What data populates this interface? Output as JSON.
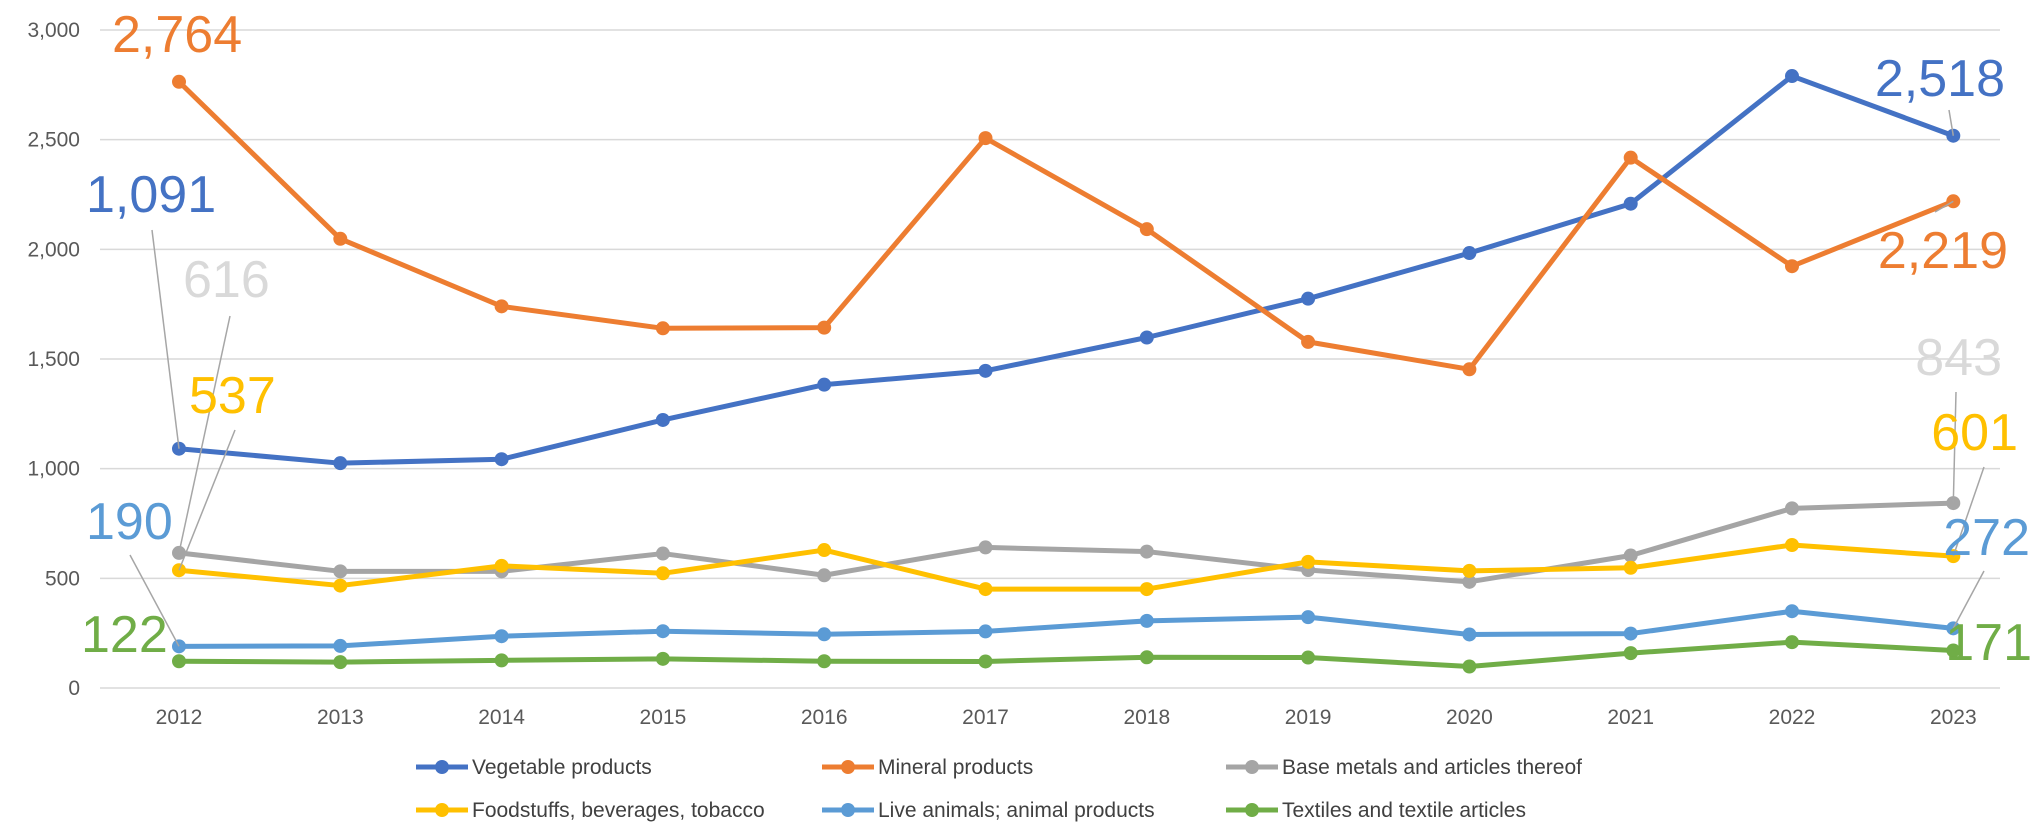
{
  "chart_data": {
    "type": "line",
    "x": [
      "2012",
      "2013",
      "2014",
      "2015",
      "2016",
      "2017",
      "2018",
      "2019",
      "2020",
      "2021",
      "2022",
      "2023"
    ],
    "ylim": [
      0,
      3000
    ],
    "yticks": [
      0,
      500,
      1000,
      1500,
      2000,
      2500,
      3000
    ],
    "ytick_labels": [
      "0",
      "500",
      "1,000",
      "1,500",
      "2,000",
      "2,500",
      "3,000"
    ],
    "grid": "horizontal",
    "legend_position": "bottom",
    "series": [
      {
        "name": "Vegetable products",
        "color": "#4472C4",
        "values": [
          1091,
          1025,
          1043,
          1222,
          1383,
          1446,
          1598,
          1775,
          1983,
          2208,
          2790,
          2518
        ],
        "first_label": "1,091",
        "last_label": "2,518"
      },
      {
        "name": "Mineral products",
        "color": "#ED7D31",
        "values": [
          2764,
          2048,
          1740,
          1640,
          1643,
          2507,
          2092,
          1578,
          1453,
          2418,
          1923,
          2219
        ],
        "first_label": "2,764",
        "last_label": "2,219"
      },
      {
        "name": "Base metals and articles thereof",
        "color": "#A5A5A5",
        "values": [
          616,
          532,
          532,
          613,
          514,
          641,
          622,
          538,
          484,
          604,
          819,
          843
        ],
        "first_label": "616",
        "last_label": "843"
      },
      {
        "name": "Foodstuffs, beverages, tobacco",
        "color": "#FFC000",
        "values": [
          537,
          467,
          557,
          523,
          629,
          451,
          451,
          575,
          534,
          548,
          652,
          601
        ],
        "first_label": "537",
        "last_label": "601"
      },
      {
        "name": "Live animals;  animal products",
        "color": "#5B9BD5",
        "values": [
          190,
          192,
          236,
          259,
          245,
          258,
          306,
          323,
          244,
          248,
          350,
          272
        ],
        "first_label": "190",
        "last_label": "272"
      },
      {
        "name": "Textiles and textile articles",
        "color": "#70AD47",
        "values": [
          122,
          118,
          126,
          133,
          122,
          121,
          140,
          139,
          98,
          159,
          209,
          171
        ],
        "first_label": "122",
        "last_label": "171"
      }
    ]
  },
  "label_colors": {
    "Base metals and articles thereof": "#D9D9D9"
  }
}
